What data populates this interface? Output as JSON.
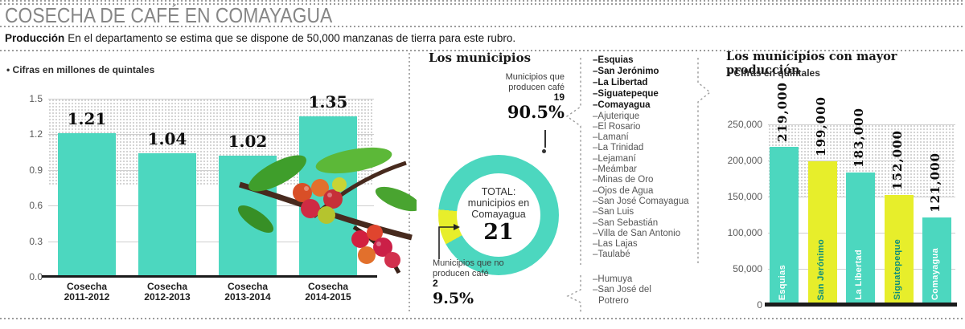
{
  "header": {
    "title": "COSECHA DE CAFÉ EN COMAYAGUA",
    "intro_label": "Producción",
    "intro_text": "En el departamento se estima que se dispone de 50,000 manzanas de tierra para este rubro."
  },
  "colors": {
    "teal": "#4cd7bf",
    "yellow": "#e7ee2b",
    "dark": "#1b1b1b"
  },
  "chart_data": [
    {
      "type": "bar",
      "note": "Cifras en millones de quintales",
      "categories": [
        [
          "Cosecha",
          "2011-2012"
        ],
        [
          "Cosecha",
          "2012-2013"
        ],
        [
          "Cosecha",
          "2013-2014"
        ],
        [
          "Cosecha",
          "2014-2015"
        ]
      ],
      "values": [
        1.21,
        1.04,
        1.02,
        1.35
      ],
      "value_labels": [
        "1.21",
        "1.04",
        "1.02",
        "1.35"
      ],
      "yticks": [
        "0.0",
        "0.3",
        "0.6",
        "0.9",
        "1.2",
        "1.5"
      ],
      "ylim": [
        0,
        1.5
      ],
      "grid": true,
      "legend": "none"
    },
    {
      "type": "pie",
      "labels": [
        "Municipios que producen café",
        "Municipios que no producen café"
      ],
      "values": [
        19,
        2
      ],
      "pct_labels": [
        "90.5%",
        "9.5%"
      ],
      "total": 21,
      "colors": [
        "#4cd7bf",
        "#e7ee2b"
      ]
    },
    {
      "type": "bar",
      "title": "Los municipios con mayor producción",
      "note": "Cifras en quintales",
      "categories": [
        "Esquias",
        "San Jerónimo",
        "La Libertad",
        "Siguatepeque",
        "Comayagua"
      ],
      "values": [
        219000,
        199000,
        183000,
        152000,
        121000
      ],
      "value_labels": [
        "219,000",
        "199,000",
        "183,000",
        "152,000",
        "121,000"
      ],
      "yticks": [
        "0",
        "50,000",
        "100,000",
        "150,000",
        "200,000",
        "250,000"
      ],
      "ylim": [
        0,
        250000
      ],
      "grid": true,
      "legend": "none"
    }
  ],
  "municipios": {
    "heading": "Los municipios",
    "callout_producers": {
      "line1": "Municipios que",
      "line2": "producen café",
      "count": "19",
      "pct": "90.5%"
    },
    "center": {
      "line1": "TOTAL:",
      "line2": "municipios en",
      "line3": "Comayagua",
      "total": "21"
    },
    "callout_non": {
      "line1": "Municipios que no",
      "line2": "producen café",
      "count": "2",
      "pct": "9.5%"
    },
    "top_producers": [
      "Esquias",
      "San Jerónimo",
      "La Libertad",
      "Siguatepeque",
      "Comayagua"
    ],
    "other_producers": [
      "Ajuterique",
      "El Rosario",
      "Lamaní",
      "La Trinidad",
      "Lejamaní",
      "Meámbar",
      "Minas de Oro",
      "Ojos de Agua",
      "San José Comayagua",
      "San Luis",
      "San Sebastián",
      "Villa de San Antonio",
      "Las Lajas",
      "Taulabé"
    ],
    "non_producers": [
      "Humuya",
      "San José del Potrero"
    ]
  }
}
